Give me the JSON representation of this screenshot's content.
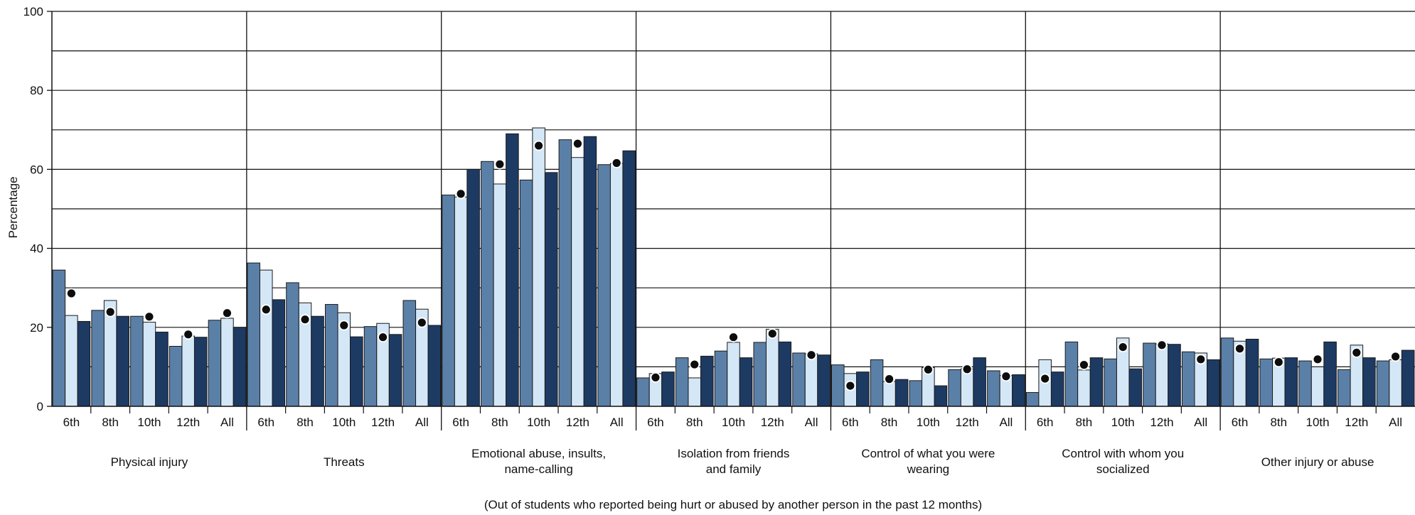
{
  "chart_data": {
    "type": "bar",
    "title": "",
    "ylabel": "Percentage",
    "ylim": [
      0,
      100
    ],
    "yticks": [
      0,
      20,
      40,
      60,
      80,
      100
    ],
    "grid": true,
    "note": "(Out of students who reported being hurt or abused by another person in the past 12 months)",
    "subgroups": [
      "6th",
      "8th",
      "10th",
      "12th",
      "All"
    ],
    "colors": {
      "bar_a": "#5b80a8",
      "bar_b": "#d4e7f7",
      "bar_c": "#1d3a63",
      "dot": "#0d0d0d"
    },
    "groups": [
      {
        "name": "Physical injury",
        "label_lines": [
          "Physical injury"
        ],
        "bars": [
          [
            34.5,
            23.0,
            21.5
          ],
          [
            24.3,
            26.8,
            22.8
          ],
          [
            22.8,
            21.3,
            18.8
          ],
          [
            15.2,
            17.8,
            17.5
          ],
          [
            21.8,
            22.3,
            20.0
          ]
        ],
        "dots": [
          28.6,
          23.9,
          22.7,
          18.2,
          23.6
        ]
      },
      {
        "name": "Threats",
        "label_lines": [
          "Threats"
        ],
        "bars": [
          [
            36.3,
            34.5,
            27.0
          ],
          [
            31.3,
            26.2,
            22.8
          ],
          [
            25.8,
            23.7,
            17.6
          ],
          [
            20.2,
            21.0,
            18.2
          ],
          [
            26.8,
            24.6,
            20.5
          ]
        ],
        "dots": [
          24.5,
          22.0,
          20.5,
          17.5,
          21.2
        ]
      },
      {
        "name": "Emotional abuse, insults, name-calling",
        "label_lines": [
          "Emotional abuse, insults,",
          "name-calling"
        ],
        "bars": [
          [
            53.5,
            53.0,
            60.0
          ],
          [
            62.0,
            56.3,
            69.0
          ],
          [
            57.3,
            70.5,
            59.2
          ],
          [
            67.5,
            63.0,
            68.3
          ],
          [
            61.2,
            61.5,
            64.7
          ]
        ],
        "dots": [
          53.8,
          61.3,
          66.0,
          66.5,
          61.6
        ]
      },
      {
        "name": "Isolation from friends and family",
        "label_lines": [
          "Isolation from friends",
          "and family"
        ],
        "bars": [
          [
            7.2,
            8.3,
            8.7
          ],
          [
            12.3,
            7.2,
            12.7
          ],
          [
            14.0,
            16.2,
            12.3
          ],
          [
            16.2,
            19.5,
            16.3
          ],
          [
            13.5,
            13.3,
            13.0
          ]
        ],
        "dots": [
          7.3,
          10.6,
          17.5,
          18.4,
          13.0
        ]
      },
      {
        "name": "Control of what you were wearing",
        "label_lines": [
          "Control of what you were",
          "wearing"
        ],
        "bars": [
          [
            10.5,
            8.3,
            8.7
          ],
          [
            11.8,
            6.3,
            6.8
          ],
          [
            6.5,
            9.8,
            5.2
          ],
          [
            9.3,
            9.5,
            12.3
          ],
          [
            9.0,
            7.8,
            8.0
          ]
        ],
        "dots": [
          5.2,
          6.9,
          9.3,
          9.4,
          7.6
        ]
      },
      {
        "name": "Control with whom you socialized",
        "label_lines": [
          "Control with whom you",
          "socialized"
        ],
        "bars": [
          [
            3.5,
            11.8,
            8.7
          ],
          [
            16.3,
            9.2,
            12.3
          ],
          [
            12.0,
            17.3,
            9.5
          ],
          [
            16.0,
            15.8,
            15.7
          ],
          [
            13.8,
            13.5,
            11.8
          ]
        ],
        "dots": [
          7.0,
          10.5,
          15.0,
          15.5,
          11.9
        ]
      },
      {
        "name": "Other injury or abuse",
        "label_lines": [
          "Other injury or abuse"
        ],
        "bars": [
          [
            17.3,
            16.5,
            17.0
          ],
          [
            12.0,
            12.2,
            12.3
          ],
          [
            11.5,
            10.0,
            16.3
          ],
          [
            9.3,
            15.5,
            12.3
          ],
          [
            11.5,
            11.8,
            14.2
          ]
        ],
        "dots": [
          14.6,
          11.2,
          11.9,
          13.6,
          12.6
        ]
      }
    ]
  }
}
